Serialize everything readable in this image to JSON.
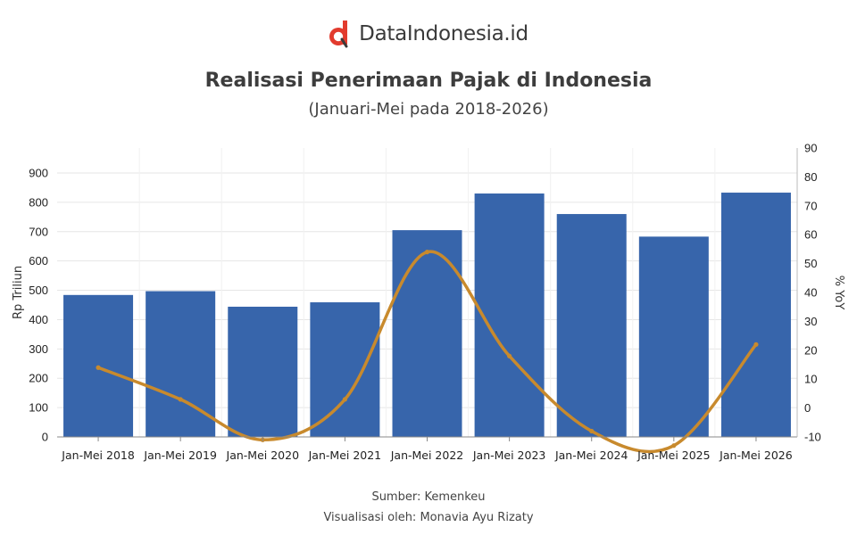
{
  "brand": {
    "name": "DataIndonesia.id",
    "logo_icon": "dataindonesia-logo-icon",
    "logo_color": "#e23b2e"
  },
  "header": {
    "title": "Realisasi Penerimaan Pajak di Indonesia",
    "subtitle": "(Januari-Mei pada 2018-2026)"
  },
  "footer": {
    "source": "Sumber: Kemenkeu",
    "visualization": "Visualisasi oleh: Monavia Ayu Rizaty"
  },
  "colors": {
    "bar": "#3765ab",
    "line": "#c88a2d",
    "grid": "#e6e6e6"
  },
  "chart_data": {
    "type": "bar",
    "categories": [
      "Jan-Mei 2018",
      "Jan-Mei 2019",
      "Jan-Mei 2020",
      "Jan-Mei 2021",
      "Jan-Mei 2022",
      "Jan-Mei 2023",
      "Jan-Mei 2024",
      "Jan-Mei 2025",
      "Jan-Mei 2026"
    ],
    "series": [
      {
        "type": "bar",
        "axis": "left",
        "values": [
          484,
          497,
          444,
          459,
          705,
          830,
          760,
          683,
          833
        ]
      },
      {
        "type": "line",
        "axis": "right",
        "smooth": true,
        "values": [
          14,
          3,
          -11,
          3,
          54,
          18,
          -8,
          -13,
          22
        ]
      }
    ],
    "ylabel": "Rp Triliun",
    "y2label": "% YoY",
    "ylim": [
      0,
      900
    ],
    "y2lim": [
      -10,
      90
    ],
    "yticks": [
      0,
      100,
      200,
      300,
      400,
      500,
      600,
      700,
      800,
      900
    ],
    "y2ticks": [
      -10,
      0,
      10,
      20,
      30,
      40,
      50,
      60,
      70,
      80,
      90
    ],
    "grid": true,
    "legend": "none"
  }
}
